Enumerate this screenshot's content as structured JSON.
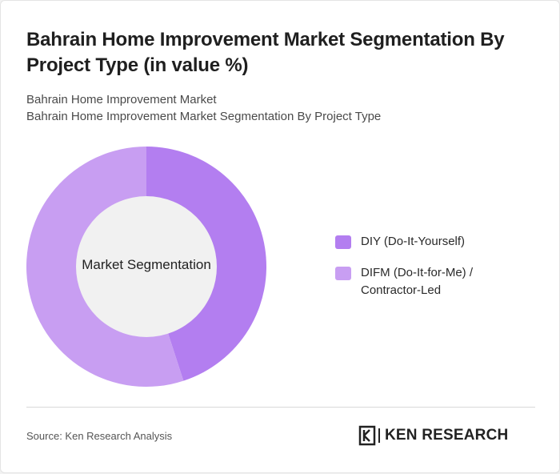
{
  "header": {
    "title": "Bahrain Home Improvement Market Segmentation By Project Type (in value %)",
    "subtitle_line1": "Bahrain Home Improvement Market",
    "subtitle_line2": "Bahrain Home Improvement Market Segmentation By Project Type"
  },
  "chart_data": {
    "type": "pie",
    "center_label": "Market Segmentation",
    "categories": [
      "DIY (Do-It-Yourself)",
      "DIFM (Do-It-for-Me) / Contractor-Led"
    ],
    "values": [
      45,
      55
    ],
    "colors": [
      "#b37ef0",
      "#c89ef2"
    ],
    "legend_position": "right"
  },
  "footer": {
    "source": "Source: Ken Research Analysis",
    "logo_text": "KEN RESEARCH"
  }
}
